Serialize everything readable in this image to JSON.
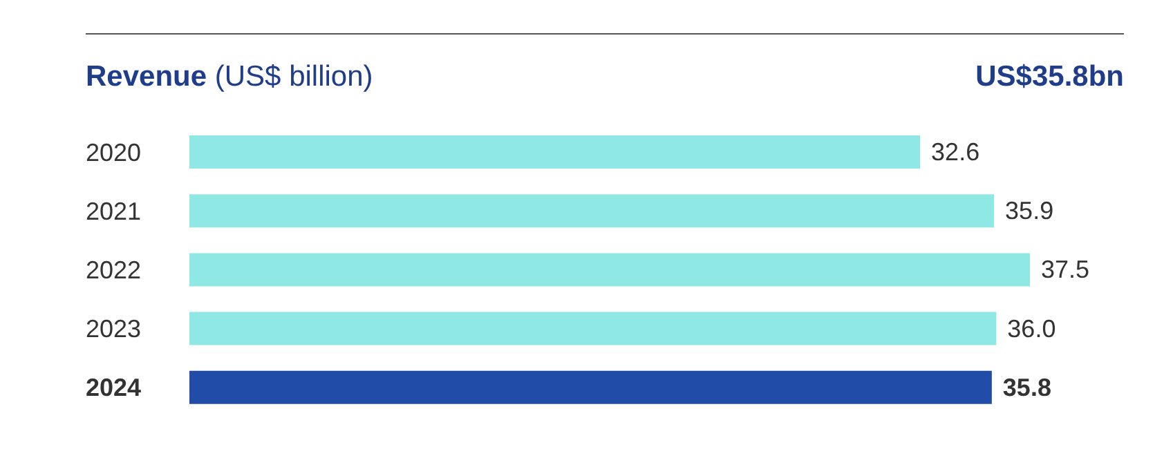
{
  "chart_data": {
    "type": "bar",
    "orientation": "horizontal",
    "title": "Revenue",
    "subtitle": "(US$ billion)",
    "annotations": [
      "US$35.8bn"
    ],
    "categories": [
      "2020",
      "2021",
      "2022",
      "2023",
      "2024"
    ],
    "values": [
      32.6,
      35.9,
      37.5,
      36.0,
      35.8
    ],
    "colors": [
      "#8fe8e4",
      "#8fe8e4",
      "#8fe8e4",
      "#8fe8e4",
      "#214ca8"
    ],
    "value_labels": [
      "32.6",
      "35.9",
      "37.5",
      "36.0",
      "35.8"
    ],
    "tick_labels": "y"
  }
}
